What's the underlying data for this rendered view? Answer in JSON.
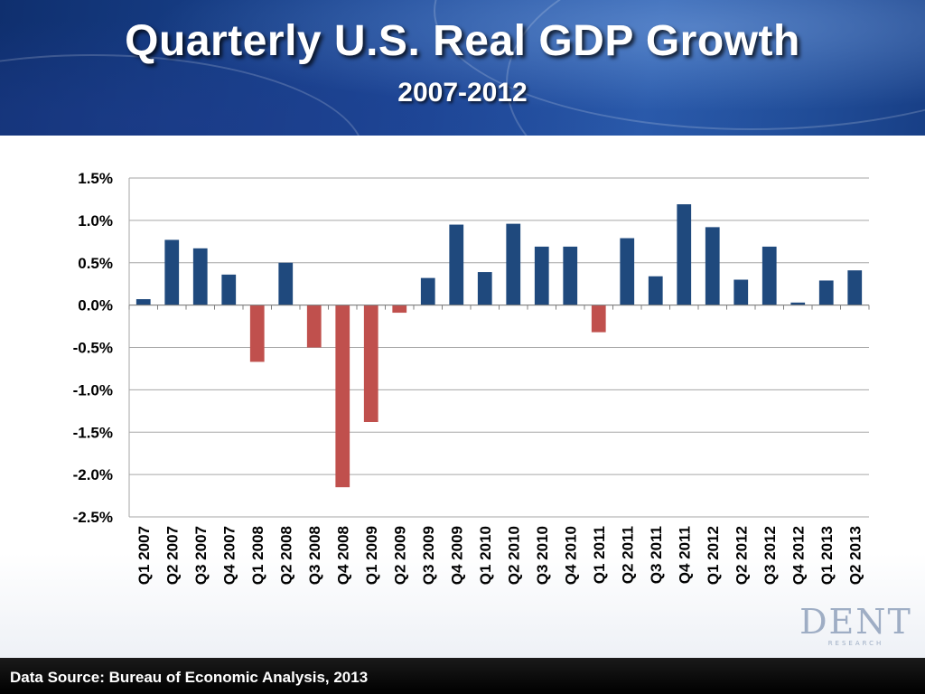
{
  "slide": {
    "title": "Quarterly U.S. Real GDP Growth",
    "subtitle": "2007-2012",
    "source": "Data Source: Bureau of Economic Analysis, 2013",
    "logo_text": "DENT",
    "logo_subtext": "RESEARCH"
  },
  "colors": {
    "positive": "#1f497d",
    "negative": "#c0504d",
    "grid": "#a6a6a6",
    "text": "#000000"
  },
  "chart_data": {
    "type": "bar",
    "title": "Quarterly U.S. Real GDP Growth",
    "subtitle": "2007-2012",
    "xlabel": "",
    "ylabel": "",
    "ylim": [
      -2.5,
      1.5
    ],
    "ytick_step": 0.5,
    "ytick_labels": [
      "1.5%",
      "1.0%",
      "0.5%",
      "0.0%",
      "-0.5%",
      "-1.0%",
      "-1.5%",
      "-2.0%",
      "-2.5%"
    ],
    "grid": true,
    "legend": "none",
    "categories": [
      "Q1 2007",
      "Q2 2007",
      "Q3 2007",
      "Q4 2007",
      "Q1 2008",
      "Q2 2008",
      "Q3 2008",
      "Q4 2008",
      "Q1 2009",
      "Q2 2009",
      "Q3 2009",
      "Q4 2009",
      "Q1 2010",
      "Q2 2010",
      "Q3 2010",
      "Q4 2010",
      "Q1 2011",
      "Q2 2011",
      "Q3 2011",
      "Q4 2011",
      "Q1 2012",
      "Q2 2012",
      "Q3 2012",
      "Q4 2012",
      "Q1 2013",
      "Q2 2013"
    ],
    "values": [
      0.07,
      0.77,
      0.67,
      0.36,
      -0.67,
      0.5,
      -0.5,
      -2.15,
      -1.38,
      -0.09,
      0.32,
      0.95,
      0.39,
      0.96,
      0.69,
      0.69,
      -0.32,
      0.79,
      0.34,
      1.19,
      0.92,
      0.3,
      0.69,
      0.03,
      0.29,
      0.41
    ]
  }
}
